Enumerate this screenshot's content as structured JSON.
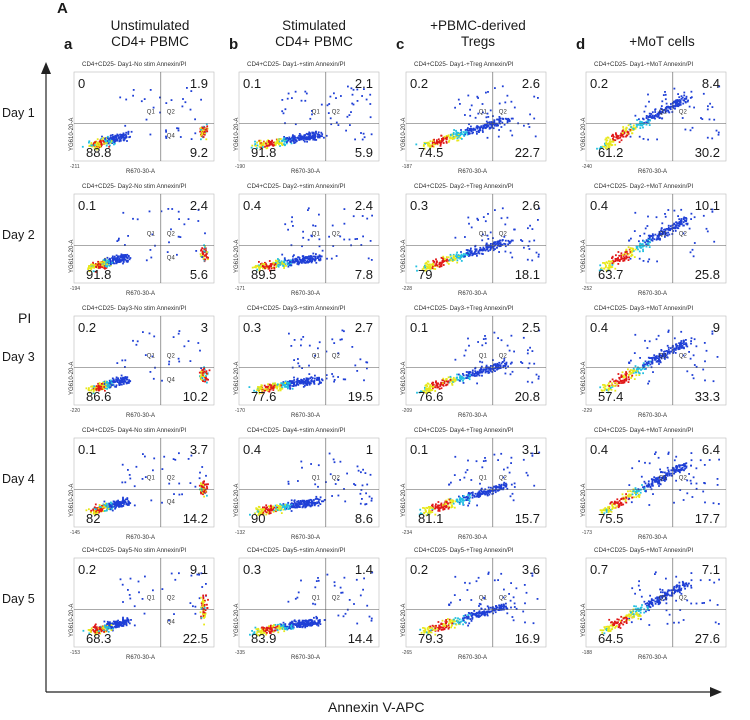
{
  "figure": {
    "label": "A",
    "y_axis_title": "PI",
    "x_axis_title": "Annexin V-APC",
    "days": [
      "Day 1",
      "Day 2",
      "Day 3",
      "Day 4",
      "Day 5"
    ],
    "columns": [
      {
        "letter": "a",
        "title_line1": "Unstimulated",
        "title_line2": "CD4+ PBMC",
        "kind": "nostim"
      },
      {
        "letter": "b",
        "title_line1": "Stimulated",
        "title_line2": "CD4+ PBMC",
        "kind": "stim"
      },
      {
        "letter": "c",
        "title_line1": "+PBMC-derived",
        "title_line2": "Tregs",
        "kind": "treg"
      },
      {
        "letter": "d",
        "title_line1": "+MoT cells",
        "title_line2": "",
        "kind": "mot"
      }
    ],
    "axis_y_label": "YG610-20-A",
    "axis_x_label": "R670-30-A",
    "gate_labels": [
      "Q1",
      "Q2",
      "Q4"
    ],
    "colors": {
      "low": "#1f3fd6",
      "mid": "#22c0e0",
      "high": "#e8e81a",
      "peak": "#e01818"
    }
  },
  "chart_data": {
    "type": "scatter",
    "layout": "grid",
    "rows": [
      "Day 1",
      "Day 2",
      "Day 3",
      "Day 4",
      "Day 5"
    ],
    "cols": [
      "a",
      "b",
      "c",
      "d"
    ],
    "panels": [
      {
        "row": 0,
        "col": 0,
        "title": "CD4+CD25- Day1-No stim Annexin/PI",
        "q1": "0",
        "q2": "1.9",
        "q3": "88.8",
        "q4": "9.2",
        "xmin": "-211"
      },
      {
        "row": 0,
        "col": 1,
        "title": "CD4+CD25- Day1-+stim Annexin/PI",
        "q1": "0.1",
        "q2": "2.1",
        "q3": "91.8",
        "q4": "5.9",
        "xmin": "-190"
      },
      {
        "row": 0,
        "col": 2,
        "title": "CD4+CD25- Day1-+Treg Annexin/PI",
        "q1": "0.2",
        "q2": "2.6",
        "q3": "74.5",
        "q4": "22.7",
        "xmin": "-187"
      },
      {
        "row": 0,
        "col": 3,
        "title": "CD4+CD25- Day1-+MoT Annexin/PI",
        "q1": "0.2",
        "q2": "8.4",
        "q3": "61.2",
        "q4": "30.2",
        "xmin": "-240"
      },
      {
        "row": 1,
        "col": 0,
        "title": "CD4+CD25- Day2-No stim Annexin/PI",
        "q1": "0.1",
        "q2": "2.4",
        "q3": "91.8",
        "q4": "5.6",
        "xmin": "-194"
      },
      {
        "row": 1,
        "col": 1,
        "title": "CD4+CD25- Day2-+stim Annexin/PI",
        "q1": "0.4",
        "q2": "2.4",
        "q3": "89.5",
        "q4": "7.8",
        "xmin": "-171"
      },
      {
        "row": 1,
        "col": 2,
        "title": "CD4+CD25- Day2-+Treg Annexin/PI",
        "q1": "0.3",
        "q2": "2.6",
        "q3": "79",
        "q4": "18.1",
        "xmin": "-228"
      },
      {
        "row": 1,
        "col": 3,
        "title": "CD4+CD25- Day2-+MoT Annexin/PI",
        "q1": "0.4",
        "q2": "10.1",
        "q3": "63.7",
        "q4": "25.8",
        "xmin": "-252"
      },
      {
        "row": 2,
        "col": 0,
        "title": "CD4+CD25- Day3-No stim Annexin/PI",
        "q1": "0.2",
        "q2": "3",
        "q3": "86.6",
        "q4": "10.2",
        "xmin": "-220"
      },
      {
        "row": 2,
        "col": 1,
        "title": "CD4+CD25- Day3-+stim Annexin/PI",
        "q1": "0.3",
        "q2": "2.7",
        "q3": "77.6",
        "q4": "19.5",
        "xmin": "-170"
      },
      {
        "row": 2,
        "col": 2,
        "title": "CD4+CD25- Day3-+Treg Annexin/PI",
        "q1": "0.1",
        "q2": "2.5",
        "q3": "76.6",
        "q4": "20.8",
        "xmin": "-209"
      },
      {
        "row": 2,
        "col": 3,
        "title": "CD4+CD25- Day3-+MoT Annexin/PI",
        "q1": "0.4",
        "q2": "9",
        "q3": "57.4",
        "q4": "33.3",
        "xmin": "-229"
      },
      {
        "row": 3,
        "col": 0,
        "title": "CD4+CD25- Day4-No stim Annexin/PI",
        "q1": "0.1",
        "q2": "3.7",
        "q3": "82",
        "q4": "14.2",
        "xmin": "-145"
      },
      {
        "row": 3,
        "col": 1,
        "title": "CD4+CD25- Day4-+stim Annexin/PI",
        "q1": "0.4",
        "q2": "1",
        "q3": "90",
        "q4": "8.6",
        "xmin": "-132"
      },
      {
        "row": 3,
        "col": 2,
        "title": "CD4+CD25- Day4-+Treg Annexin/PI",
        "q1": "0.1",
        "q2": "3.1",
        "q3": "81.1",
        "q4": "15.7",
        "xmin": "-234"
      },
      {
        "row": 3,
        "col": 3,
        "title": "CD4+CD25- Day4-+MoT Annexin/PI",
        "q1": "0.4",
        "q2": "6.4",
        "q3": "75.5",
        "q4": "17.7",
        "xmin": "-173"
      },
      {
        "row": 4,
        "col": 0,
        "title": "CD4+CD25- Day5-No stim Annexin/PI",
        "q1": "0.2",
        "q2": "9.1",
        "q3": "68.3",
        "q4": "22.5",
        "xmin": "-153"
      },
      {
        "row": 4,
        "col": 1,
        "title": "CD4+CD25- Day5-+stim Annexin/PI",
        "q1": "0.3",
        "q2": "1.4",
        "q3": "83.9",
        "q4": "14.4",
        "xmin": "-335"
      },
      {
        "row": 4,
        "col": 2,
        "title": "CD4+CD25- Day5-+Treg Annexin/PI",
        "q1": "0.2",
        "q2": "3.6",
        "q3": "79.3",
        "q4": "16.9",
        "xmin": "-265"
      },
      {
        "row": 4,
        "col": 3,
        "title": "CD4+CD25- Day5-+MoT Annexin/PI",
        "q1": "0.7",
        "q2": "7.1",
        "q3": "64.5",
        "q4": "27.6",
        "xmin": "-188"
      }
    ]
  }
}
